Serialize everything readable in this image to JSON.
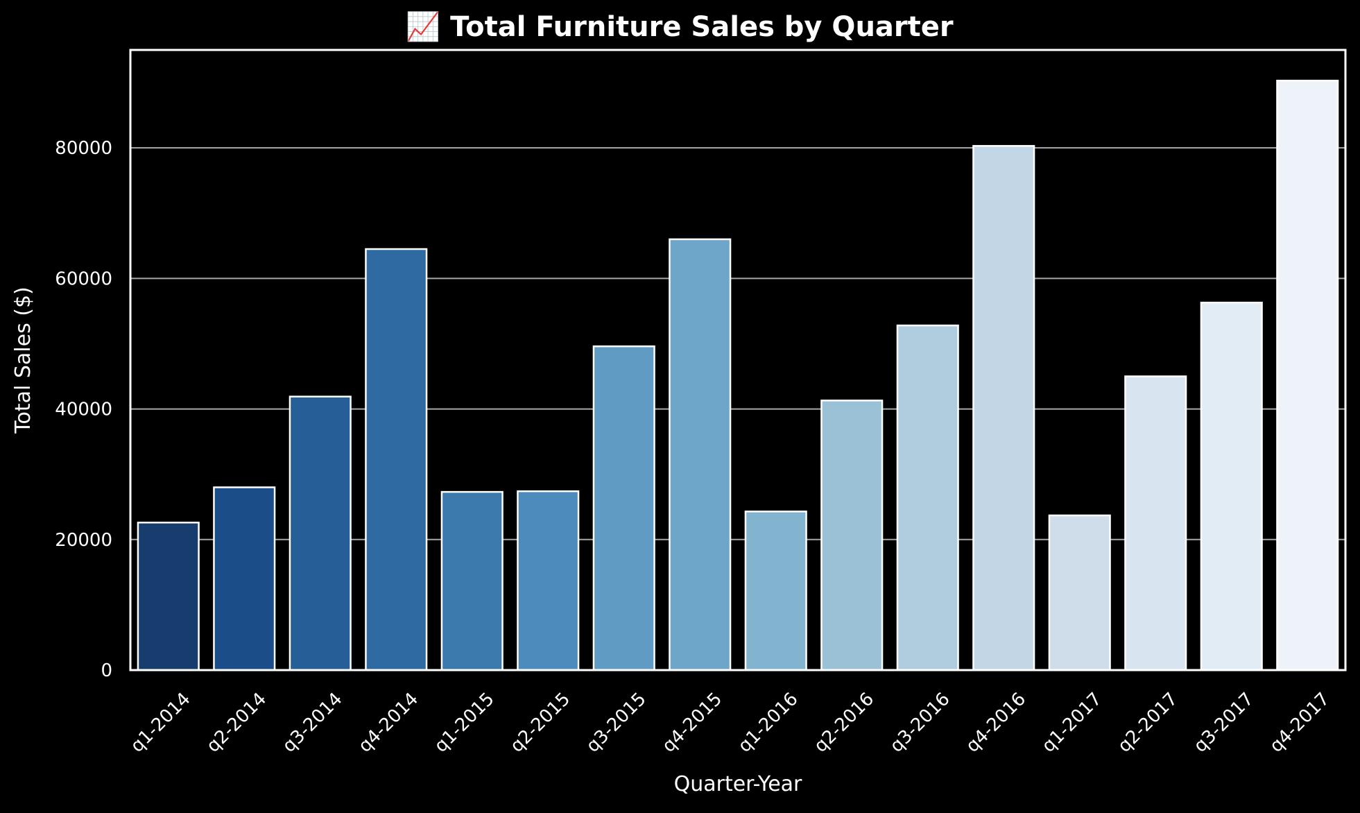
{
  "chart_data": {
    "type": "bar",
    "title": "📈 Total Furniture Sales by Quarter",
    "xlabel": "Quarter-Year",
    "ylabel": "Total Sales ($)",
    "categories": [
      "q1-2014",
      "q2-2014",
      "q3-2014",
      "q4-2014",
      "q1-2015",
      "q2-2015",
      "q3-2015",
      "q4-2015",
      "q1-2016",
      "q2-2016",
      "q3-2016",
      "q4-2016",
      "q1-2017",
      "q2-2017",
      "q3-2017",
      "q4-2017"
    ],
    "values": [
      22600,
      28000,
      41900,
      64500,
      27300,
      27400,
      49600,
      66000,
      24300,
      41300,
      52800,
      80300,
      23700,
      45000,
      56300,
      90300
    ],
    "ylim": [
      0,
      95000
    ],
    "yticks": [
      0,
      20000,
      40000,
      60000,
      80000
    ],
    "ytick_labels": [
      "0",
      "20000",
      "40000",
      "60000",
      "80000"
    ],
    "grid": "horizontal",
    "legend": "none",
    "colors": [
      "#163d6e",
      "#1b4d89",
      "#265e97",
      "#2f6ba2",
      "#3c7aae",
      "#4c8bbb",
      "#5f9bc3",
      "#6ea6c9",
      "#82b4d0",
      "#9bc1d6",
      "#afcddf",
      "#c2d6e5",
      "#cedde9",
      "#d8e5f0",
      "#e2ecf4",
      "#eef3fa"
    ],
    "edge_color": "#ffffff",
    "background": "#000000",
    "gridline_color": "#a8a8a8"
  }
}
